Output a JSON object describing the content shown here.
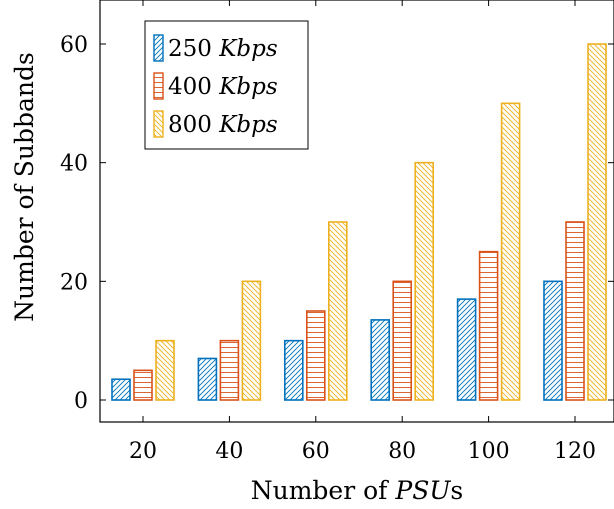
{
  "chart_data": {
    "type": "bar",
    "title": "",
    "xlabel_prefix": "Number of ",
    "xlabel_var": "PSU",
    "xlabel_suffix": "s",
    "ylabel": "Number of Subbands",
    "categories": [
      "20",
      "40",
      "60",
      "80",
      "100",
      "120"
    ],
    "ylim": [
      -3,
      66
    ],
    "yticks": [
      "0",
      "20",
      "40",
      "60"
    ],
    "grid": false,
    "legend_position": "top-left",
    "series": [
      {
        "name_value": "250",
        "name_unit": "Kbps",
        "color": "#0072BD",
        "hatch": "diagonal",
        "values": [
          3.5,
          7,
          10,
          13.5,
          17,
          20
        ]
      },
      {
        "name_value": "400",
        "name_unit": "Kbps",
        "color": "#D95319",
        "hatch": "horizontal",
        "values": [
          5,
          10,
          15,
          20,
          25,
          30
        ]
      },
      {
        "name_value": "800",
        "name_unit": "Kbps",
        "color": "#EDB120",
        "hatch": "diagonal-back",
        "values": [
          10,
          20,
          30,
          40,
          50,
          60
        ]
      }
    ]
  }
}
